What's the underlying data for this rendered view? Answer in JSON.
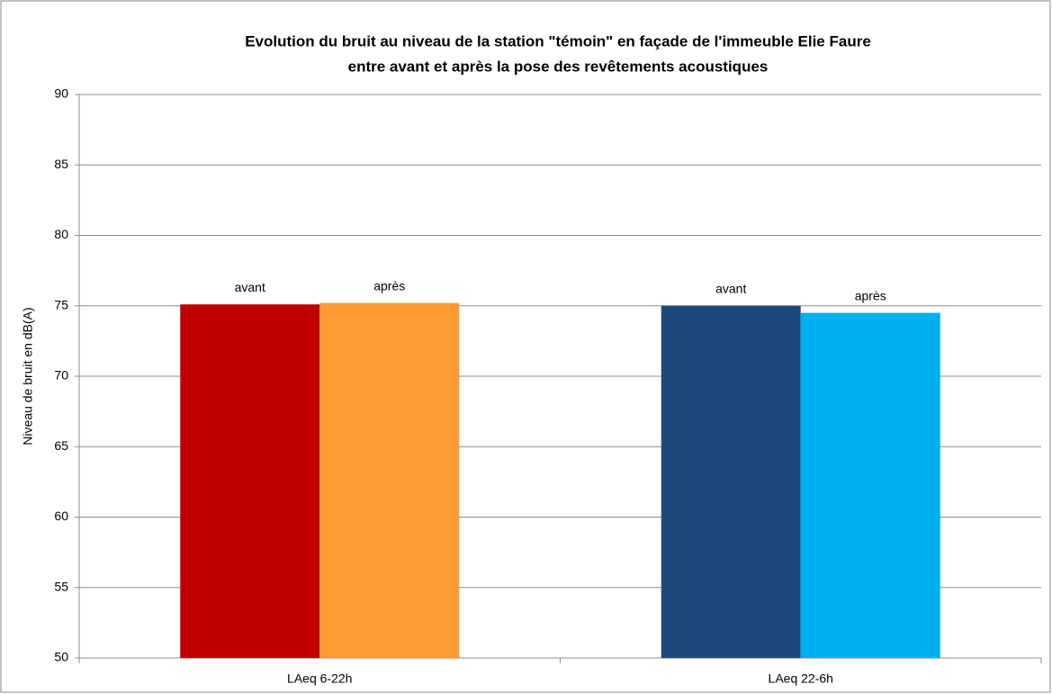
{
  "chart_data": {
    "type": "bar",
    "title": [
      "Evolution du bruit au niveau de la station \"témoin\" en façade de l'immeuble Elie Faure",
      "entre avant et après la pose des revêtements acoustiques"
    ],
    "y_label": "Niveau de bruit en dB(A)",
    "categories": [
      "LAeq 6-22h",
      "LAeq 22-6h"
    ],
    "series": [
      {
        "name": "avant",
        "colors": [
          "#c00000",
          "#1f497d"
        ],
        "values": [
          75.1,
          75.0
        ]
      },
      {
        "name": "après",
        "colors": [
          "#ff9933",
          "#00b0f0"
        ],
        "values": [
          75.2,
          74.5
        ]
      }
    ],
    "ylim": [
      50,
      90
    ],
    "yticks": [
      50,
      55,
      60,
      65,
      70,
      75,
      80,
      85,
      90
    ],
    "grid": true
  }
}
